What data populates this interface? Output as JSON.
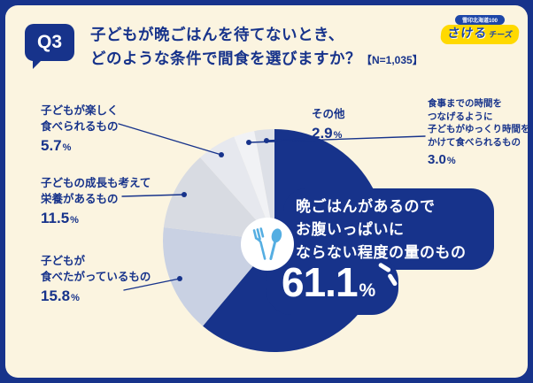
{
  "colors": {
    "navy": "#17338B",
    "cream": "#FBF4E0",
    "icon_blue": "#55AEE2",
    "logo_yellow": "#FFD900"
  },
  "header": {
    "badge": "Q3",
    "title_line1": "子どもが晩ごはんを待てないとき、",
    "title_line2": "どのような条件で間食を選びますか？",
    "sample_note": "【N=1,035】"
  },
  "logo": {
    "ribbon": "雪印北海道100",
    "main": "さける",
    "sub": "チーズ"
  },
  "chart_data": {
    "type": "pie",
    "title": "子どもが晩ごはんを待てないとき、どのような条件で間食を選びますか？",
    "sample_size": "N=1,035",
    "start_angle_deg": 0,
    "direction": "clockwise",
    "segments": [
      {
        "label": "晩ごはんがあるのでお腹いっぱいにならない程度の量のもの",
        "value": 61.1,
        "color": "#17338B"
      },
      {
        "label": "子どもが食べたがっているもの",
        "value": 15.8,
        "color": "#C9D1E3"
      },
      {
        "label": "子どもの成長も考えて栄養があるもの",
        "value": 11.5,
        "color": "#D8DBE2"
      },
      {
        "label": "子どもが楽しく食べられるもの",
        "value": 5.7,
        "color": "#E6E8EE"
      },
      {
        "label": "食事までの時間をつなげるように子どもがゆっくり時間をかけて食べられるもの",
        "value": 3.0,
        "color": "#F1F2F5"
      },
      {
        "label": "その他",
        "value": 2.9,
        "color": "#DDE0E7"
      }
    ]
  },
  "callouts": {
    "main": {
      "line1": "晩ごはんがあるので",
      "line2": "お腹いっぱいに",
      "line3": "ならない程度の量のもの",
      "pct": "61.1",
      "unit": "%"
    },
    "fun": {
      "line1": "子どもが楽しく",
      "line2": "食べられるもの",
      "pct": "5.7",
      "unit": "%"
    },
    "nutrition": {
      "line1": "子どもの成長も考えて",
      "line2": "栄養があるもの",
      "pct": "11.5",
      "unit": "%"
    },
    "want": {
      "line1": "子どもが",
      "line2": "食べたがっているもの",
      "pct": "15.8",
      "unit": "%"
    },
    "time": {
      "line1": "食事までの時間を",
      "line2": "つなげるように",
      "line3": "子どもがゆっくり時間を",
      "line4": "かけて食べられるもの",
      "pct": "3.0",
      "unit": "%"
    },
    "other": {
      "line1": "その他",
      "pct": "2.9",
      "unit": "%"
    }
  }
}
